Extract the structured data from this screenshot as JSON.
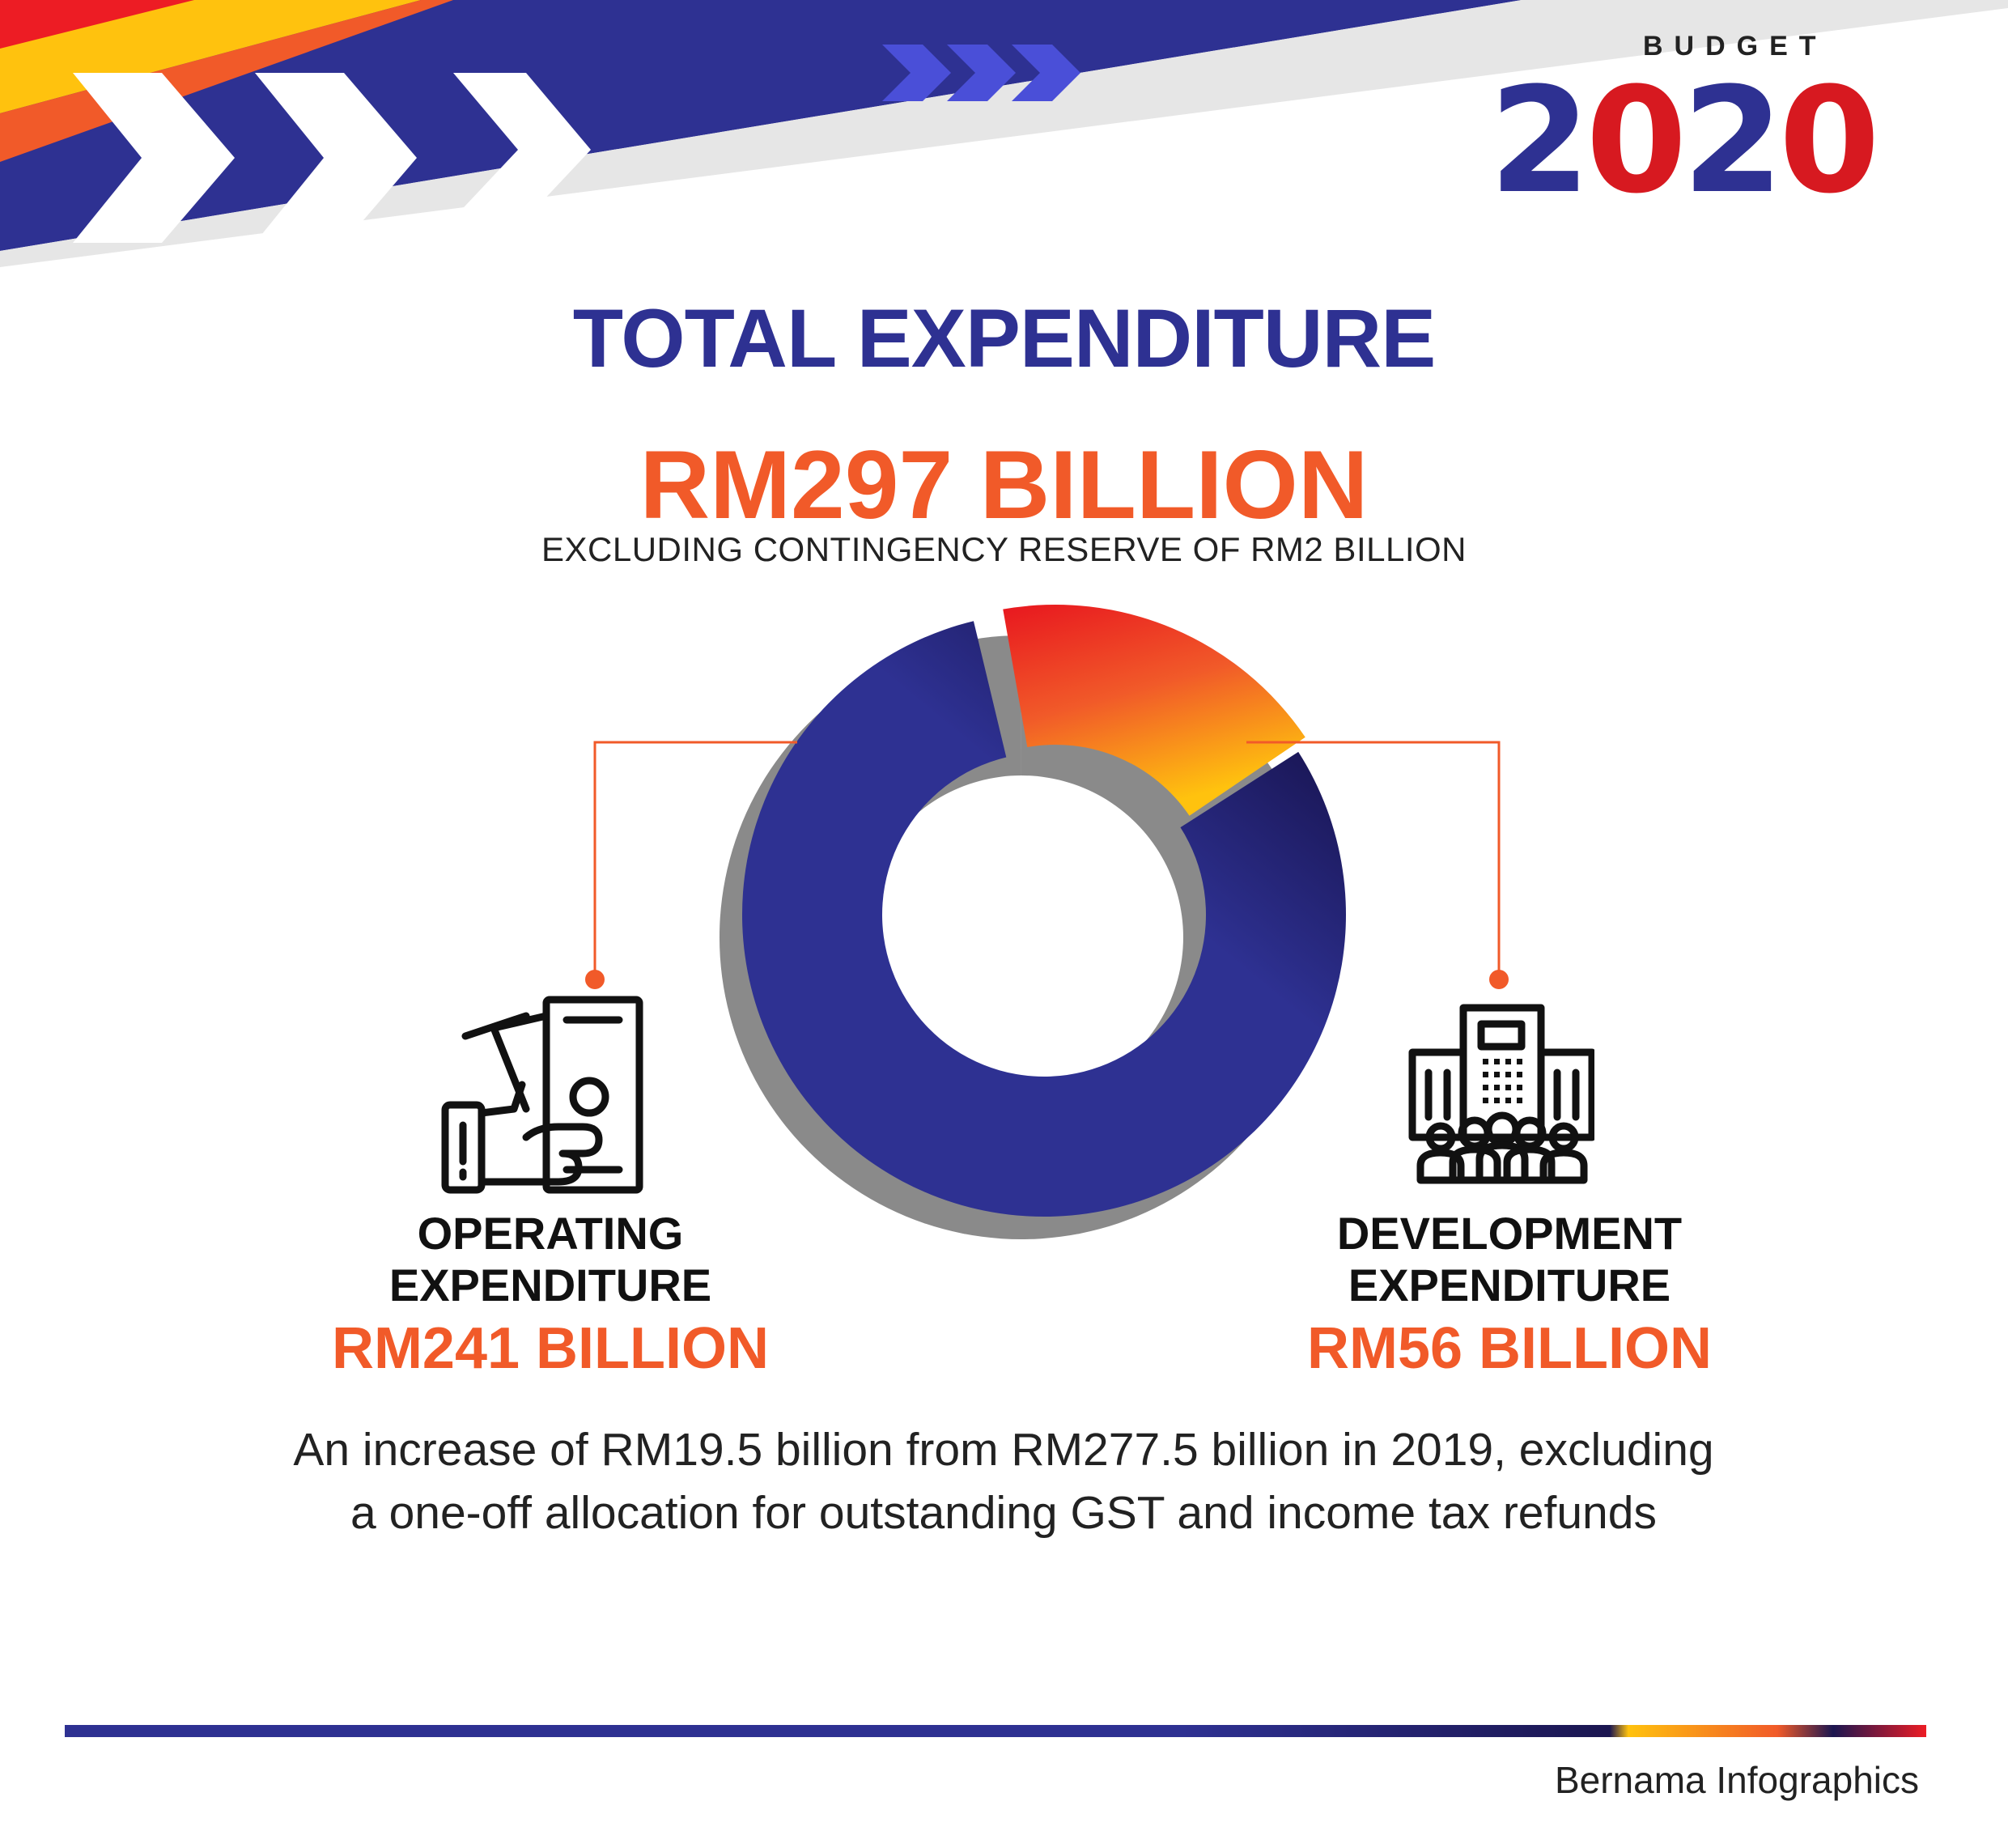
{
  "brand": {
    "top": "BUDGET",
    "year": "2020"
  },
  "chart_data": {
    "type": "pie",
    "title": "TOTAL EXPENDITURE",
    "total_label": "RM297 BILLION",
    "subtitle": "EXCLUDING CONTINGENCY RESERVE OF RM2 BILLION",
    "unit": "RM billion",
    "categories": [
      "OPERATING EXPENDITURE",
      "DEVELOPMENT EXPENDITURE"
    ],
    "values": [
      241,
      56
    ],
    "value_labels": [
      "RM241 BILLION",
      "RM56 BILLION"
    ],
    "colors": [
      "#2e3192",
      "#f15a29"
    ]
  },
  "labels": {
    "operating": {
      "line1": "OPERATING",
      "line2": "EXPENDITURE",
      "value": "RM241 BILLION"
    },
    "development": {
      "line1": "DEVELOPMENT",
      "line2": "EXPENDITURE",
      "value": "RM56 BILLION"
    }
  },
  "note": "An increase of RM19.5 billion from RM277.5 billion in 2019, excluding a one-off allocation for outstanding GST and income tax refunds",
  "credit": "Bernama Infographics",
  "icons": {
    "operating": "cash-in-hand-icon",
    "development": "buildings-people-icon"
  }
}
